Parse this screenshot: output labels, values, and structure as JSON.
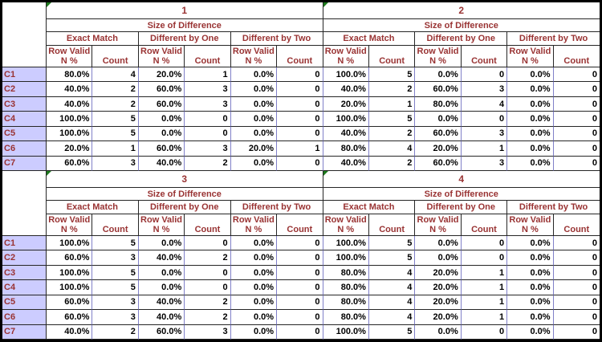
{
  "app": {
    "description": "Spreadsheet region with four pivot tables of match-difference statistics"
  },
  "colors": {
    "header_text": "#993333",
    "row_label_bg": "#CCCCFF",
    "grid_vertical": "#8080C8",
    "grid_horizontal": "#262626",
    "error_marker": "#1D7A1D",
    "data_text": "#000000",
    "cell_bg": "#FFFFFF"
  },
  "row_labels": [
    "C1",
    "C2",
    "C3",
    "C4",
    "C5",
    "C6",
    "C7"
  ],
  "headers": {
    "span_title": "Size of Difference",
    "groups": [
      "Exact Match",
      "Different by One",
      "Different by Two"
    ],
    "sub_col": [
      "Row Valid",
      "N %"
    ],
    "count_label": "Count"
  },
  "blocks": [
    {
      "tables": [
        {
          "number": "1",
          "rows": [
            [
              "80.0%",
              "4",
              "20.0%",
              "1",
              "0.0%",
              "0"
            ],
            [
              "40.0%",
              "2",
              "60.0%",
              "3",
              "0.0%",
              "0"
            ],
            [
              "40.0%",
              "2",
              "60.0%",
              "3",
              "0.0%",
              "0"
            ],
            [
              "100.0%",
              "5",
              "0.0%",
              "0",
              "0.0%",
              "0"
            ],
            [
              "100.0%",
              "5",
              "0.0%",
              "0",
              "0.0%",
              "0"
            ],
            [
              "20.0%",
              "1",
              "60.0%",
              "3",
              "20.0%",
              "1"
            ],
            [
              "60.0%",
              "3",
              "40.0%",
              "2",
              "0.0%",
              "0"
            ]
          ]
        },
        {
          "number": "2",
          "rows": [
            [
              "100.0%",
              "5",
              "0.0%",
              "0",
              "0.0%",
              "0"
            ],
            [
              "40.0%",
              "2",
              "60.0%",
              "3",
              "0.0%",
              "0"
            ],
            [
              "20.0%",
              "1",
              "80.0%",
              "4",
              "0.0%",
              "0"
            ],
            [
              "100.0%",
              "5",
              "0.0%",
              "0",
              "0.0%",
              "0"
            ],
            [
              "40.0%",
              "2",
              "60.0%",
              "3",
              "0.0%",
              "0"
            ],
            [
              "80.0%",
              "4",
              "20.0%",
              "1",
              "0.0%",
              "0"
            ],
            [
              "40.0%",
              "2",
              "60.0%",
              "3",
              "0.0%",
              "0"
            ]
          ]
        }
      ]
    },
    {
      "tables": [
        {
          "number": "3",
          "rows": [
            [
              "100.0%",
              "5",
              "0.0%",
              "0",
              "0.0%",
              "0"
            ],
            [
              "60.0%",
              "3",
              "40.0%",
              "2",
              "0.0%",
              "0"
            ],
            [
              "100.0%",
              "5",
              "0.0%",
              "0",
              "0.0%",
              "0"
            ],
            [
              "100.0%",
              "5",
              "0.0%",
              "0",
              "0.0%",
              "0"
            ],
            [
              "60.0%",
              "3",
              "40.0%",
              "2",
              "0.0%",
              "0"
            ],
            [
              "60.0%",
              "3",
              "40.0%",
              "2",
              "0.0%",
              "0"
            ],
            [
              "40.0%",
              "2",
              "60.0%",
              "3",
              "0.0%",
              "0"
            ]
          ]
        },
        {
          "number": "4",
          "rows": [
            [
              "100.0%",
              "5",
              "0.0%",
              "0",
              "0.0%",
              "0"
            ],
            [
              "100.0%",
              "5",
              "0.0%",
              "0",
              "0.0%",
              "0"
            ],
            [
              "80.0%",
              "4",
              "20.0%",
              "1",
              "0.0%",
              "0"
            ],
            [
              "80.0%",
              "4",
              "20.0%",
              "1",
              "0.0%",
              "0"
            ],
            [
              "80.0%",
              "4",
              "20.0%",
              "1",
              "0.0%",
              "0"
            ],
            [
              "80.0%",
              "4",
              "20.0%",
              "1",
              "0.0%",
              "0"
            ],
            [
              "100.0%",
              "5",
              "0.0%",
              "0",
              "0.0%",
              "0"
            ]
          ]
        }
      ]
    }
  ]
}
